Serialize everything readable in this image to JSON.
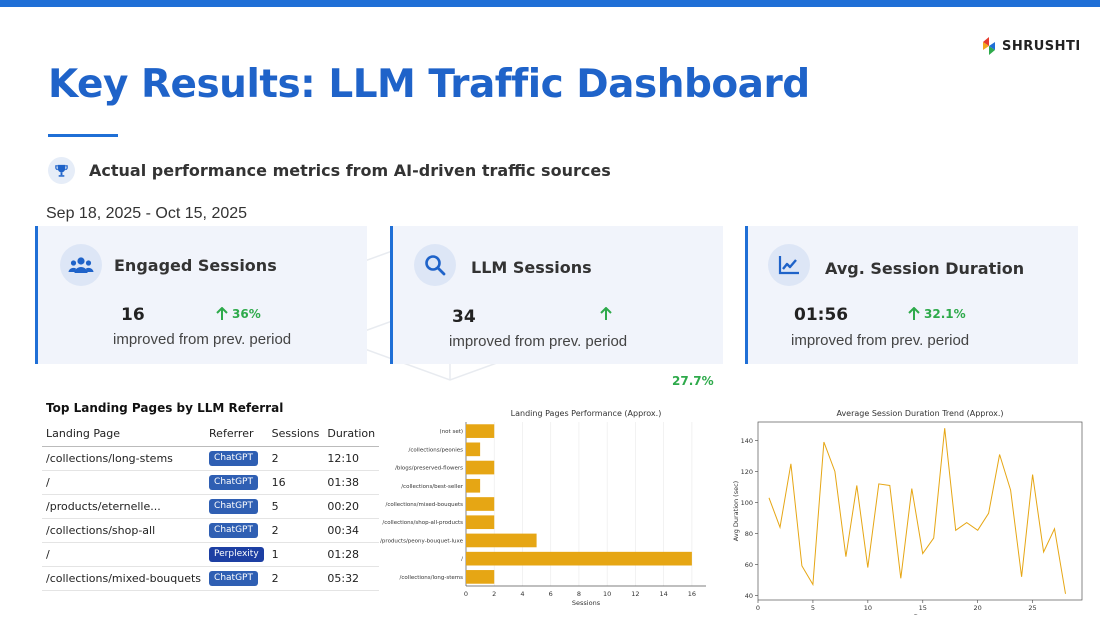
{
  "brand": {
    "name": "SHRUSHTI",
    "logo_icon": "shrushti-logo-icon"
  },
  "title": "Key Results: LLM Traffic Dashboard",
  "subtitle": "Actual performance metrics from AI-driven traffic sources",
  "date_range": "Sep 18, 2025 - Oct 15, 2025",
  "colors": {
    "accent": "#1f6fd6",
    "title": "#1f63c9",
    "up": "#2eaa4b",
    "bar": "#e6a614",
    "line": "#e6a614",
    "chatgpt": "#2f5fb3",
    "perplexity": "#1d3fa3"
  },
  "cards": [
    {
      "icon": "users-icon",
      "title": "Engaged Sessions",
      "value": "16",
      "change": "36%",
      "note": "improved from prev. period"
    },
    {
      "icon": "search-icon",
      "title": "LLM Sessions",
      "value": "34",
      "change": "",
      "note": "improved from prev. period"
    },
    {
      "icon": "line-chart-icon",
      "title": "Avg. Session Duration",
      "value": "01:56",
      "change": "32.1%",
      "note": "improved from prev. period"
    }
  ],
  "floating_change": "27.7%",
  "landing_table": {
    "title": "Top Landing Pages by LLM Referral",
    "columns": [
      "Landing Page",
      "Referrer",
      "Sessions",
      "Duration"
    ],
    "rows": [
      {
        "page": "/collections/long-stems",
        "referrer": "ChatGPT",
        "sessions": "2",
        "duration": "12:10"
      },
      {
        "page": "/",
        "referrer": "ChatGPT",
        "sessions": "16",
        "duration": "01:38"
      },
      {
        "page": "/products/eternelle...",
        "referrer": "ChatGPT",
        "sessions": "5",
        "duration": "00:20"
      },
      {
        "page": "/collections/shop-all",
        "referrer": "ChatGPT",
        "sessions": "2",
        "duration": "00:34"
      },
      {
        "page": "/",
        "referrer": "Perplexity",
        "sessions": "1",
        "duration": "01:28"
      },
      {
        "page": "/collections/mixed-bouquets",
        "referrer": "ChatGPT",
        "sessions": "2",
        "duration": "05:32"
      }
    ]
  },
  "chart_data": [
    {
      "type": "bar",
      "orientation": "horizontal",
      "title": "Landing Pages Performance (Approx.)",
      "xlabel": "Sessions",
      "ylabel": "",
      "categories": [
        "(not set)",
        "/collections/peonies",
        "/blogs/preserved-flowers",
        "/collections/best-seller",
        "/collections/mixed-bouquets",
        "/collections/shop-all-products",
        "/products/peony-bouquet-luxe",
        "/",
        "/collections/long-stems"
      ],
      "values": [
        2,
        1,
        2,
        1,
        2,
        2,
        5,
        16,
        2
      ],
      "xlim": [
        0,
        17
      ],
      "xticks": [
        0,
        2,
        4,
        6,
        8,
        10,
        12,
        14,
        16
      ]
    },
    {
      "type": "line",
      "title": "Average Session Duration Trend (Approx.)",
      "xlabel": "Day",
      "ylabel": "Avg Duration (sec)",
      "x": [
        1,
        2,
        3,
        4,
        5,
        6,
        7,
        8,
        9,
        10,
        11,
        12,
        13,
        14,
        15,
        16,
        17,
        18,
        19,
        20,
        21,
        22,
        23,
        24,
        25,
        26,
        27,
        28
      ],
      "values": [
        103,
        84,
        125,
        59,
        47,
        139,
        120,
        65,
        111,
        58,
        112,
        111,
        51,
        109,
        67,
        77,
        148,
        82,
        87,
        82,
        93,
        131,
        108,
        52,
        118,
        68,
        83,
        41
      ],
      "xlim": [
        0,
        29.5
      ],
      "ylim": [
        37,
        152
      ],
      "xticks": [
        0,
        5,
        10,
        15,
        20,
        25
      ],
      "yticks": [
        40,
        60,
        80,
        100,
        120,
        140
      ]
    }
  ]
}
